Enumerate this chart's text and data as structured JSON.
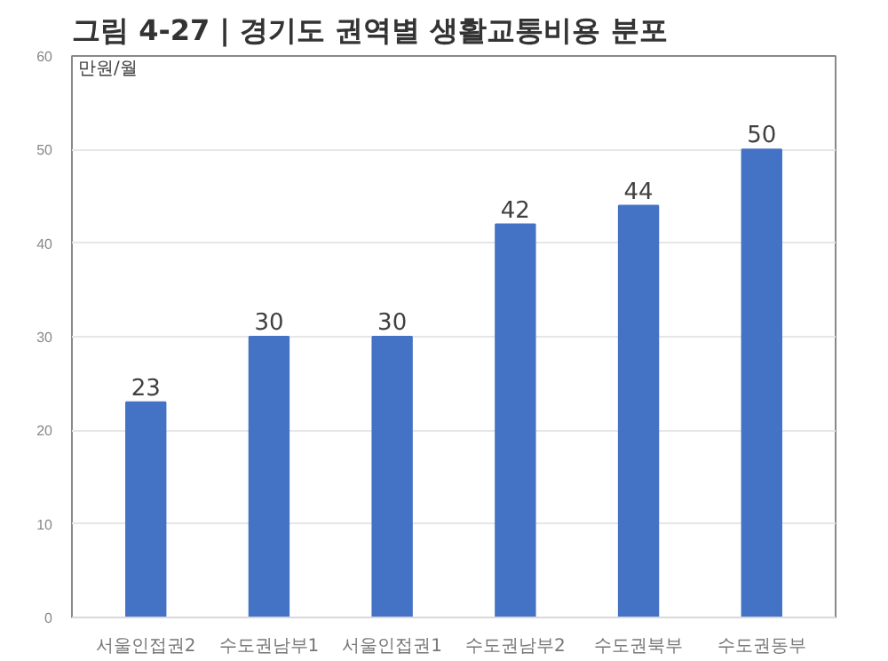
{
  "chart_data": {
    "type": "bar",
    "title": "그림 4-27 | 경기도 권역별 생활교통비용 분포",
    "ylabel": "만원/월",
    "categories": [
      "서울인접권2",
      "수도권남부1",
      "서울인접권1",
      "수도권남부2",
      "수도권북부",
      "수도권동부"
    ],
    "values": [
      23,
      30,
      30,
      42,
      44,
      50
    ],
    "color": "#4472c4",
    "data_labels": true,
    "ylim": [
      0,
      60
    ],
    "yticks": [
      0,
      10,
      20,
      30,
      40,
      50,
      60
    ],
    "grid": "y"
  }
}
